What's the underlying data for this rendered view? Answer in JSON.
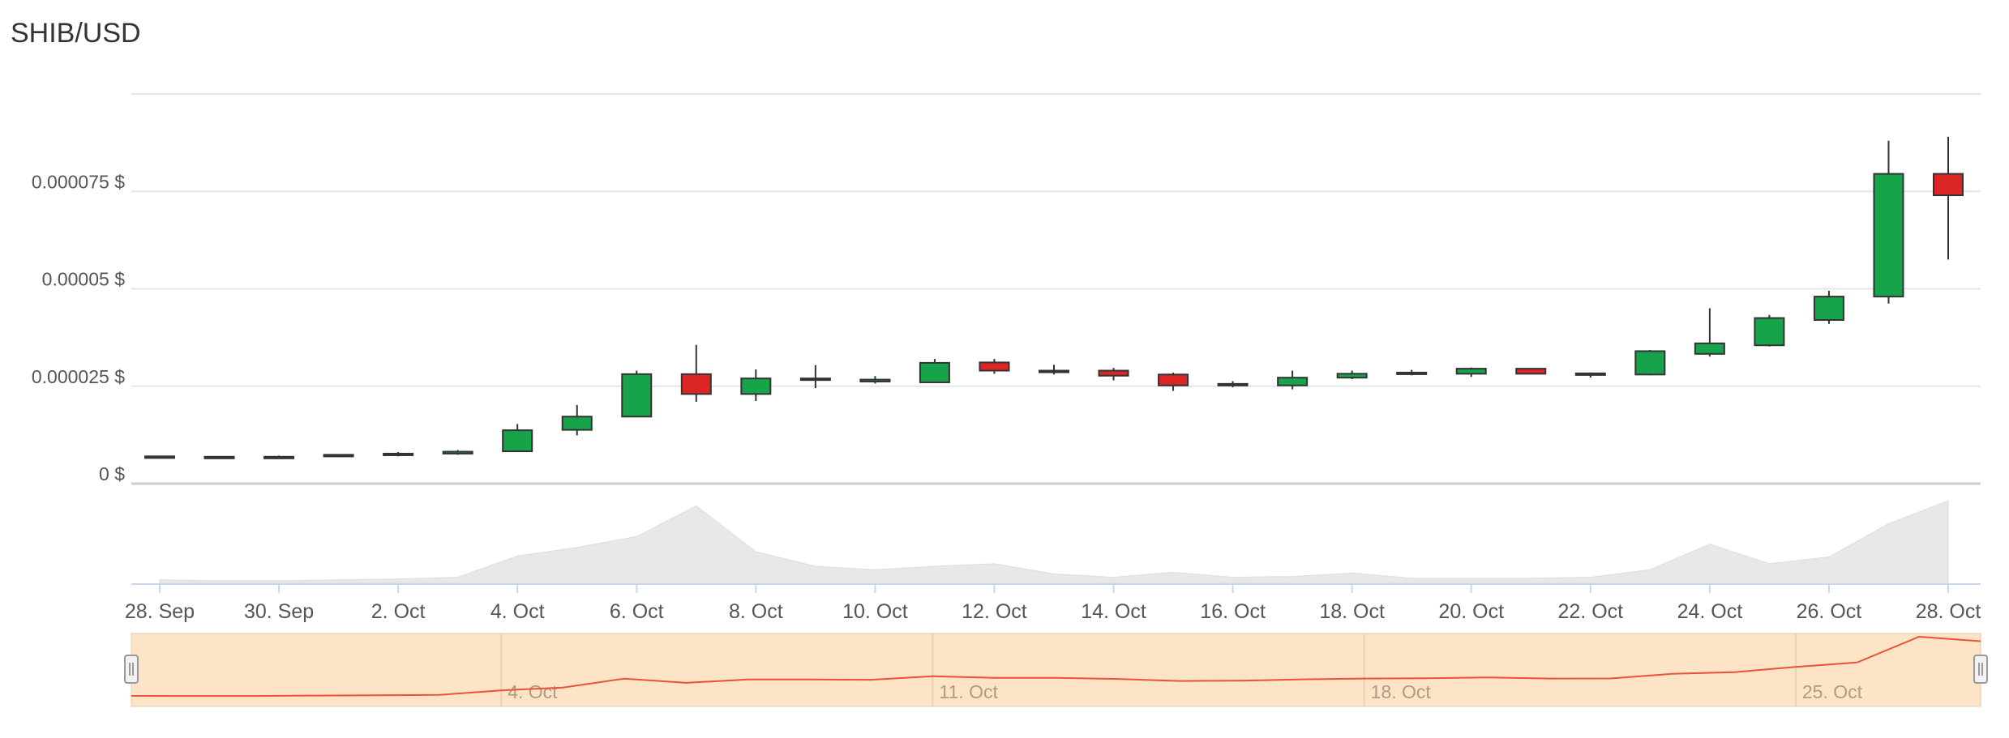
{
  "chart_data": {
    "type": "candlestick",
    "title": "SHIB/USD",
    "y_axis": {
      "ticks": [
        "0 $",
        "0.000025 $",
        "0.00005 $",
        "0.000075 $"
      ],
      "values": [
        0,
        2.5e-05,
        5e-05,
        7.5e-05
      ],
      "range": [
        0,
        0.0001
      ]
    },
    "x_axis": {
      "tick_labels": [
        "28. Sep",
        "30. Sep",
        "2. Oct",
        "4. Oct",
        "6. Oct",
        "8. Oct",
        "10. Oct",
        "12. Oct",
        "14. Oct",
        "16. Oct",
        "18. Oct",
        "20. Oct",
        "22. Oct",
        "24. Oct",
        "26. Oct",
        "28. Oct"
      ]
    },
    "dates": [
      "28. Sep",
      "29. Sep",
      "30. Sep",
      "1. Oct",
      "2. Oct",
      "3. Oct",
      "4. Oct",
      "5. Oct",
      "6. Oct",
      "7. Oct",
      "8. Oct",
      "9. Oct",
      "10. Oct",
      "11. Oct",
      "12. Oct",
      "13. Oct",
      "14. Oct",
      "15. Oct",
      "16. Oct",
      "17. Oct",
      "18. Oct",
      "19. Oct",
      "20. Oct",
      "21. Oct",
      "22. Oct",
      "23. Oct",
      "24. Oct",
      "25. Oct",
      "26. Oct",
      "27. Oct",
      "28. Oct"
    ],
    "open": [
      6.9e-06,
      6.9e-06,
      6.8e-06,
      7e-06,
      7.4e-06,
      7.7e-06,
      8.3e-06,
      1.38e-05,
      1.72e-05,
      2.81e-05,
      2.3e-05,
      2.68e-05,
      2.62e-05,
      2.6e-05,
      3.11e-05,
      2.9e-05,
      2.9e-05,
      2.8e-05,
      2.52e-05,
      2.52e-05,
      2.72e-05,
      2.82e-05,
      2.82e-05,
      2.95e-05,
      2.8e-05,
      2.8e-05,
      3.33e-05,
      3.55e-05,
      4.2e-05,
      4.8e-05,
      7.95e-05
    ],
    "high": [
      7e-06,
      7e-06,
      7.2e-06,
      7.6e-06,
      8.1e-06,
      8.6e-06,
      1.53e-05,
      2.02e-05,
      2.9e-05,
      3.56e-05,
      2.93e-05,
      3.04e-05,
      2.76e-05,
      3.2e-05,
      3.2e-05,
      3.05e-05,
      2.97e-05,
      2.85e-05,
      2.63e-05,
      2.9e-05,
      2.9e-05,
      2.92e-05,
      2.98e-05,
      2.95e-05,
      2.85e-05,
      3.43e-05,
      4.5e-05,
      4.33e-05,
      4.95e-05,
      8.8e-05,
      8.9e-05
    ],
    "low": [
      6.8e-06,
      6.8e-06,
      6.6e-06,
      6.8e-06,
      7e-06,
      7.4e-06,
      8.3e-06,
      1.24e-05,
      1.72e-05,
      2.1e-05,
      2.12e-05,
      2.45e-05,
      2.57e-05,
      2.6e-05,
      2.82e-05,
      2.8e-05,
      2.65e-05,
      2.38e-05,
      2.47e-05,
      2.42e-05,
      2.68e-05,
      2.78e-05,
      2.74e-05,
      2.82e-05,
      2.72e-05,
      2.78e-05,
      3.26e-05,
      3.52e-05,
      4.1e-05,
      4.62e-05,
      5.75e-05
    ],
    "close": [
      7e-06,
      6.9e-06,
      6.9e-06,
      7.4e-06,
      7.7e-06,
      8.2e-06,
      1.37e-05,
      1.72e-05,
      2.81e-05,
      2.3e-05,
      2.7e-05,
      2.7e-05,
      2.67e-05,
      3.1e-05,
      2.9e-05,
      2.9e-05,
      2.77e-05,
      2.52e-05,
      2.56e-05,
      2.72e-05,
      2.82e-05,
      2.85e-05,
      2.95e-05,
      2.82e-05,
      2.83e-05,
      3.4e-05,
      3.6e-05,
      4.25e-05,
      4.8e-05,
      7.95e-05,
      7.4e-05
    ],
    "volume_relative": [
      0.04,
      0.03,
      0.03,
      0.04,
      0.05,
      0.07,
      0.32,
      0.42,
      0.55,
      0.91,
      0.37,
      0.2,
      0.16,
      0.2,
      0.23,
      0.11,
      0.07,
      0.13,
      0.07,
      0.08,
      0.12,
      0.06,
      0.06,
      0.06,
      0.07,
      0.16,
      0.46,
      0.23,
      0.31,
      0.7,
      0.97
    ],
    "navigator": {
      "tick_labels": [
        "4. Oct",
        "11. Oct",
        "18. Oct",
        "25. Oct"
      ]
    },
    "colors": {
      "up": "#16a34a",
      "down": "#dc2626",
      "wick": "#333333",
      "grid": "#e6e6e6",
      "volume": "#e8e8e8",
      "navigator_fill": "#fde4c6",
      "navigator_line": "#e8533a"
    }
  }
}
